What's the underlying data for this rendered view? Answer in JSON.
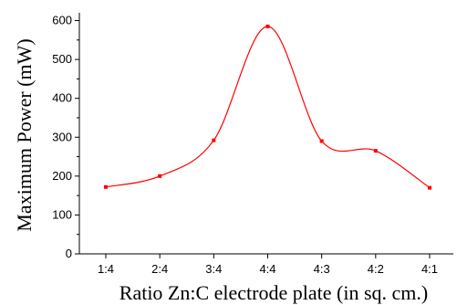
{
  "chart_data": {
    "type": "line",
    "title": "",
    "xlabel": "Ratio Zn:C electrode plate (in sq. cm.)",
    "ylabel": "Maximum Power (mW)",
    "categories": [
      "1:4",
      "2:4",
      "3:4",
      "4:4",
      "4:3",
      "4:2",
      "4:1"
    ],
    "series": [
      {
        "values": [
          172,
          200,
          292,
          585,
          290,
          265,
          170
        ]
      }
    ],
    "ylim": [
      0,
      620
    ],
    "yticks": [
      0,
      100,
      200,
      300,
      400,
      500,
      600
    ],
    "grid": false,
    "legend": "none",
    "line_color": "#ff0000",
    "marker_color": "#ff0000",
    "smooth": true
  }
}
